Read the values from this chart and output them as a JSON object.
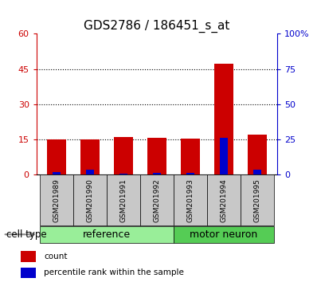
{
  "title": "GDS2786 / 186451_s_at",
  "samples": [
    "GSM201989",
    "GSM201990",
    "GSM201991",
    "GSM201992",
    "GSM201993",
    "GSM201994",
    "GSM201995"
  ],
  "count_values": [
    15.2,
    15.0,
    16.1,
    15.6,
    15.5,
    47.2,
    17.2
  ],
  "percentile_values": [
    2.0,
    3.5,
    0.8,
    1.2,
    1.5,
    26.0,
    3.5
  ],
  "left_ylim": [
    0,
    60
  ],
  "right_ylim": [
    0,
    100
  ],
  "left_yticks": [
    0,
    15,
    30,
    45,
    60
  ],
  "right_yticks": [
    0,
    25,
    50,
    75,
    100
  ],
  "right_yticklabels": [
    "0",
    "25",
    "50",
    "75",
    "100%"
  ],
  "left_yticklabels": [
    "0",
    "15",
    "30",
    "45",
    "60"
  ],
  "bar_color_red": "#cc0000",
  "bar_color_blue": "#0000cc",
  "group_reference_label": "reference",
  "group_reference_indices": [
    0,
    1,
    2,
    3
  ],
  "group_reference_color": "#99ee99",
  "group_motor_label": "motor neuron",
  "group_motor_indices": [
    4,
    5,
    6
  ],
  "group_motor_color": "#55cc55",
  "cell_type_label": "cell type",
  "legend_count": "count",
  "legend_percentile": "percentile rank within the sample",
  "tick_label_area_color": "#c8c8c8",
  "title_fontsize": 11,
  "tick_fontsize": 8,
  "label_fontsize": 6.5,
  "group_label_fontsize": 9,
  "bar_width": 0.55,
  "blue_bar_width": 0.22
}
